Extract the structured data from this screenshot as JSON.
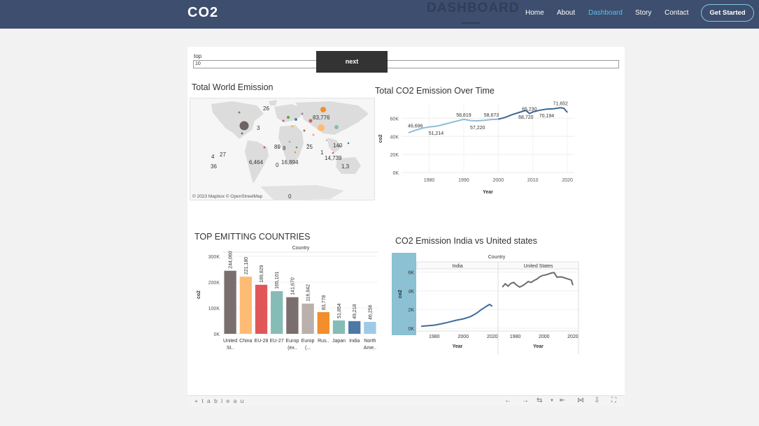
{
  "header": {
    "brand": "CO2",
    "ghost_title": "DASHBOARD",
    "nav": [
      {
        "label": "Home"
      },
      {
        "label": "About"
      },
      {
        "label": "Dashboard"
      },
      {
        "label": "Story"
      },
      {
        "label": "Contact"
      }
    ],
    "cta_label": "Get Started"
  },
  "parameter": {
    "label": "top",
    "value": "10"
  },
  "next_button": "next",
  "worksheets": {
    "map_title": "Total World Emission",
    "line_title": "Total CO2 Emission Over Time",
    "bar_title": "TOP EMITTING COUNTRIES",
    "compare_title": "CO2 Emission India vs United states"
  },
  "map": {
    "attribution": "© 2023 Mapbox © OpenStreetMap",
    "labels": [
      "26",
      "83,776",
      "3",
      "89",
      "8",
      "25",
      "1",
      "140",
      "27",
      "4",
      "6,464",
      "0",
      "16,894",
      "14,739",
      "1,3",
      "36",
      "0"
    ]
  },
  "chart_data": [
    {
      "type": "line",
      "title": "Total CO2 Emission Over Time",
      "xlabel": "Year",
      "ylabel": "co2",
      "xlim": [
        1972,
        2022
      ],
      "ylim": [
        0,
        75000
      ],
      "x_ticks": [
        "1980",
        "1990",
        "2000",
        "2010",
        "2020"
      ],
      "y_ticks": [
        "0K",
        "20K",
        "40K",
        "60K"
      ],
      "x": [
        1974,
        1976,
        1978,
        1980,
        1982,
        1984,
        1986,
        1988,
        1990,
        1992,
        1994,
        1996,
        1998,
        2000,
        2002,
        2004,
        2006,
        2008,
        2009,
        2010,
        2012,
        2014,
        2016,
        2018,
        2019,
        2020
      ],
      "values": [
        44000,
        46696,
        49000,
        50500,
        51214,
        53000,
        55000,
        57000,
        58819,
        57500,
        57220,
        57800,
        58673,
        59000,
        61000,
        64000,
        66500,
        68720,
        65230,
        67000,
        69000,
        70194,
        70500,
        71652,
        71000,
        66500
      ],
      "data_labels": [
        {
          "x": 1976,
          "y": 46696,
          "text": "46,696"
        },
        {
          "x": 1982,
          "y": 51214,
          "text": "51,214"
        },
        {
          "x": 1990,
          "y": 58819,
          "text": "58,819"
        },
        {
          "x": 1994,
          "y": 57220,
          "text": "57,220"
        },
        {
          "x": 1998,
          "y": 58673,
          "text": "58,673"
        },
        {
          "x": 2008,
          "y": 68720,
          "text": "68,720"
        },
        {
          "x": 2009,
          "y": 65230,
          "text": "65,230"
        },
        {
          "x": 2014,
          "y": 70194,
          "text": "70,194"
        },
        {
          "x": 2018,
          "y": 71652,
          "text": "71,652"
        }
      ],
      "grid": true,
      "colors": {
        "early": "#8fbcd8",
        "late": "#3c6591"
      }
    },
    {
      "type": "bar",
      "title": "TOP EMITTING COUNTRIES",
      "header": "Country",
      "ylabel": "co2",
      "ylim": [
        0,
        300000
      ],
      "y_ticks": [
        "0K",
        "100K",
        "200K",
        "300K"
      ],
      "categories": [
        [
          "United",
          "St.."
        ],
        [
          "China"
        ],
        [
          "EU-28"
        ],
        [
          "EU-27"
        ],
        [
          "Europ",
          "(ex.."
        ],
        [
          "Europ",
          "(..."
        ],
        [
          "Rus.."
        ],
        [
          "Japan"
        ],
        [
          "India"
        ],
        [
          "North",
          "Ame.."
        ]
      ],
      "values": [
        244060,
        221180,
        189829,
        165101,
        141670,
        116942,
        83778,
        51854,
        49218,
        46256
      ],
      "value_labels": [
        "244,060",
        "221,180",
        "189,829",
        "165,101",
        "141,670",
        "116,942",
        "83,778",
        "51,854",
        "49,218",
        "46,256"
      ],
      "colors": [
        "#7b6e6e",
        "#fdbb75",
        "#e15759",
        "#86bcb6",
        "#7b6e6e",
        "#bab0ac",
        "#f28e2b",
        "#86bcb6",
        "#4e79a7",
        "#9fcae6"
      ]
    },
    {
      "type": "line",
      "title": "CO2 Emission India vs United states",
      "header": "Country",
      "ylabel": "co2",
      "ylim": [
        0,
        6200
      ],
      "y_ticks": [
        "0K",
        "2K",
        "4K",
        "6K"
      ],
      "panels": [
        {
          "name": "India",
          "xlabel": "Year",
          "x_ticks": [
            "1980",
            "2000",
            "2020"
          ],
          "xlim": [
            1970,
            2022
          ],
          "x": [
            1971,
            1975,
            1980,
            1985,
            1990,
            1995,
            2000,
            2005,
            2008,
            2010,
            2012,
            2014,
            2016,
            2018,
            2020
          ],
          "values": [
            200,
            260,
            330,
            480,
            650,
            850,
            1000,
            1250,
            1500,
            1700,
            1950,
            2150,
            2350,
            2550,
            2350
          ],
          "color": "#3e6b9a"
        },
        {
          "name": "United States",
          "xlabel": "Year",
          "x_ticks": [
            "1980",
            "2000",
            "2020"
          ],
          "xlim": [
            1970,
            2022
          ],
          "x": [
            1971,
            1973,
            1975,
            1977,
            1979,
            1981,
            1983,
            1985,
            1987,
            1989,
            1991,
            1993,
            1995,
            1997,
            1999,
            2001,
            2003,
            2005,
            2007,
            2009,
            2011,
            2013,
            2015,
            2017,
            2019,
            2020
          ],
          "values": [
            4400,
            4750,
            4500,
            4800,
            4900,
            4600,
            4400,
            4550,
            4750,
            5000,
            4900,
            5100,
            5250,
            5500,
            5650,
            5700,
            5800,
            5900,
            5950,
            5450,
            5500,
            5450,
            5350,
            5250,
            5150,
            4600
          ],
          "color": "#6b6b6b"
        }
      ],
      "row_band_color": "#8bc1d3"
    }
  ],
  "toolbar": {
    "logo": "+ t a b l e a u"
  }
}
